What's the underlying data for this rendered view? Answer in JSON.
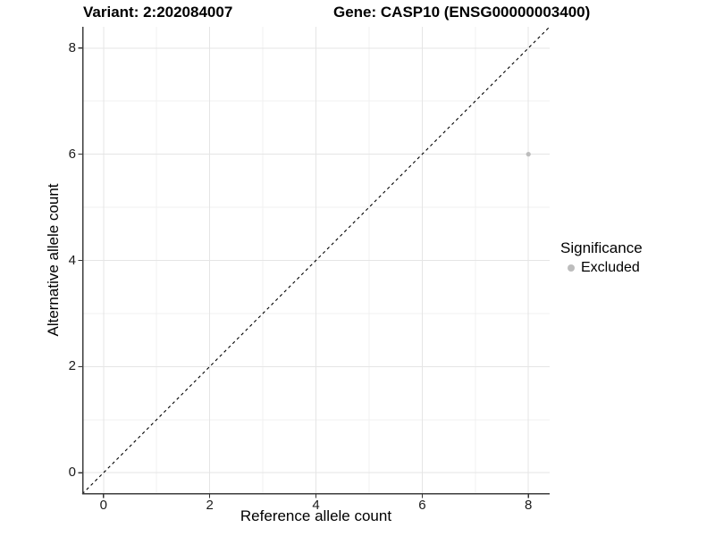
{
  "figure": {
    "title_left": "Variant: 2:202084007",
    "title_right": "Gene: CASP10 (ENSG00000003400)"
  },
  "chart_data": {
    "type": "scatter",
    "title": "Variant: 2:202084007   Gene: CASP10 (ENSG00000003400)",
    "xlabel": "Reference allele count",
    "ylabel": "Alternative allele count",
    "xlim": [
      -0.4,
      8.4
    ],
    "ylim": [
      -0.4,
      8.4
    ],
    "x_ticks": [
      0,
      2,
      4,
      6,
      8
    ],
    "y_ticks": [
      0,
      2,
      4,
      6,
      8
    ],
    "x_minor_ticks": [
      1,
      3,
      5,
      7
    ],
    "y_minor_ticks": [
      1,
      3,
      5,
      7
    ],
    "grid": "major+minor",
    "reference_line": {
      "type": "identity",
      "style": "dashed",
      "from": [
        -0.4,
        -0.4
      ],
      "to": [
        8.4,
        8.4
      ],
      "color": "#000000"
    },
    "series": [
      {
        "name": "Excluded",
        "marker": "circle",
        "color": "#bdbdbd",
        "size": 2.6,
        "points": [
          {
            "x": 8,
            "y": 6
          }
        ]
      }
    ],
    "legend": {
      "title": "Significance",
      "position": "right",
      "items": [
        {
          "label": "Excluded",
          "color": "#bdbdbd"
        }
      ]
    }
  },
  "colors": {
    "background": "#ffffff",
    "grid_major": "#e5e5e5",
    "grid_minor": "#f0f0f0",
    "axis_line": "#3c3c3c",
    "tick_mark": "#333333",
    "tick_text": "#1a1a1a",
    "title_text": "#000000",
    "point": "#bdbdbd"
  }
}
